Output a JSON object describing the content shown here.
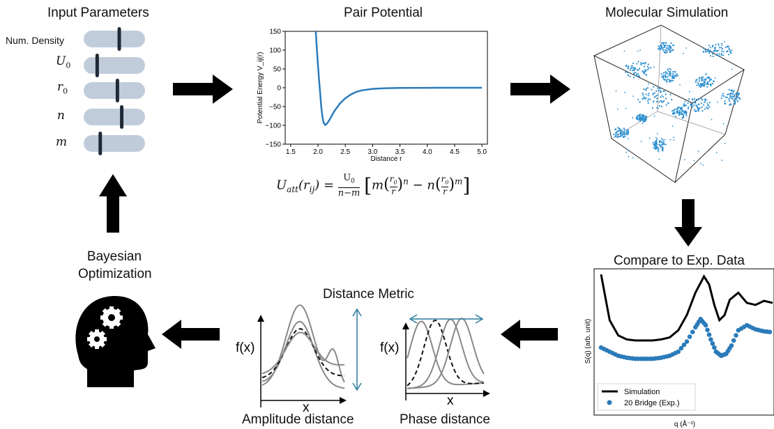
{
  "panels": {
    "input": {
      "title": "Input Parameters",
      "params": [
        {
          "label": "Num. Density",
          "slider": 0.58
        },
        {
          "label": "U0",
          "slider": 0.22
        },
        {
          "label": "r0",
          "slider": 0.55
        },
        {
          "label": "n",
          "slider": 0.62
        },
        {
          "label": "m",
          "slider": 0.27
        }
      ]
    },
    "pair": {
      "title": "Pair Potential",
      "equation": "U_att(r_ij) = U0/(n−m) [ m (r0/r)^n − n (r0/r)^m ]"
    },
    "sim": {
      "title": "Molecular Simulation"
    },
    "compare": {
      "title": "Compare to Exp. Data"
    },
    "bayes": {
      "title_line1": "Bayesian",
      "title_line2": "Optimization"
    },
    "metric": {
      "title": "Distance Metric",
      "amplitude": "Amplitude distance",
      "phase": "Phase distance",
      "fx": "f(x)",
      "x": "x"
    }
  },
  "chart_data": [
    {
      "type": "line",
      "title": "",
      "xlabel": "Distance r",
      "ylabel": "Potential Energy V_ij(r)",
      "xlim": [
        1.4,
        5.1
      ],
      "ylim": [
        -150,
        150
      ],
      "xticks": [
        "1.5",
        "2.0",
        "2.5",
        "3.0",
        "3.5",
        "4.0",
        "4.5",
        "5.0"
      ],
      "yticks": [
        "150",
        "100",
        "50",
        "0",
        "−50",
        "−100",
        "−150"
      ],
      "series": [
        {
          "x": [
            1.96,
            1.98,
            2.0,
            2.02,
            2.04,
            2.06,
            2.08,
            2.1,
            2.13,
            2.16,
            2.2,
            2.25,
            2.3,
            2.4,
            2.5,
            2.6,
            2.7,
            2.8,
            3.0,
            3.2,
            3.5,
            4.0,
            4.5,
            5.0
          ],
          "y": [
            150,
            100,
            60,
            20,
            -15,
            -50,
            -75,
            -92,
            -99,
            -96,
            -88,
            -75,
            -62,
            -42,
            -28,
            -18,
            -11,
            -7,
            -3,
            -1.5,
            -0.6,
            -0.2,
            0,
            0
          ]
        }
      ]
    },
    {
      "type": "line",
      "title": "Compare to Exp. Data",
      "xlabel": "q (Å⁻¹)",
      "ylabel": "S(q) (arb. unit)",
      "series": [
        {
          "name": "Simulation",
          "x": [
            0,
            0.05,
            0.1,
            0.15,
            0.2,
            0.25,
            0.3,
            0.35,
            0.4,
            0.45,
            0.5,
            0.55,
            0.6,
            0.63,
            0.66,
            0.69,
            0.72,
            0.75,
            0.8,
            0.85,
            0.9,
            0.95,
            1.0
          ],
          "y": [
            1.0,
            0.55,
            0.4,
            0.36,
            0.35,
            0.35,
            0.35,
            0.36,
            0.38,
            0.45,
            0.6,
            0.82,
            0.98,
            0.9,
            0.7,
            0.55,
            0.6,
            0.75,
            0.82,
            0.72,
            0.7,
            0.74,
            0.72
          ]
        },
        {
          "name": "20 Bridge (Exp.)",
          "x": [
            0,
            0.05,
            0.1,
            0.15,
            0.2,
            0.25,
            0.3,
            0.35,
            0.4,
            0.45,
            0.5,
            0.55,
            0.58,
            0.61,
            0.64,
            0.67,
            0.7,
            0.73,
            0.76,
            0.8,
            0.85,
            0.9,
            0.95,
            1.0
          ],
          "y": [
            0.28,
            0.24,
            0.2,
            0.18,
            0.17,
            0.17,
            0.17,
            0.18,
            0.2,
            0.24,
            0.34,
            0.48,
            0.56,
            0.5,
            0.36,
            0.24,
            0.2,
            0.22,
            0.3,
            0.45,
            0.5,
            0.46,
            0.44,
            0.43
          ]
        }
      ]
    }
  ]
}
